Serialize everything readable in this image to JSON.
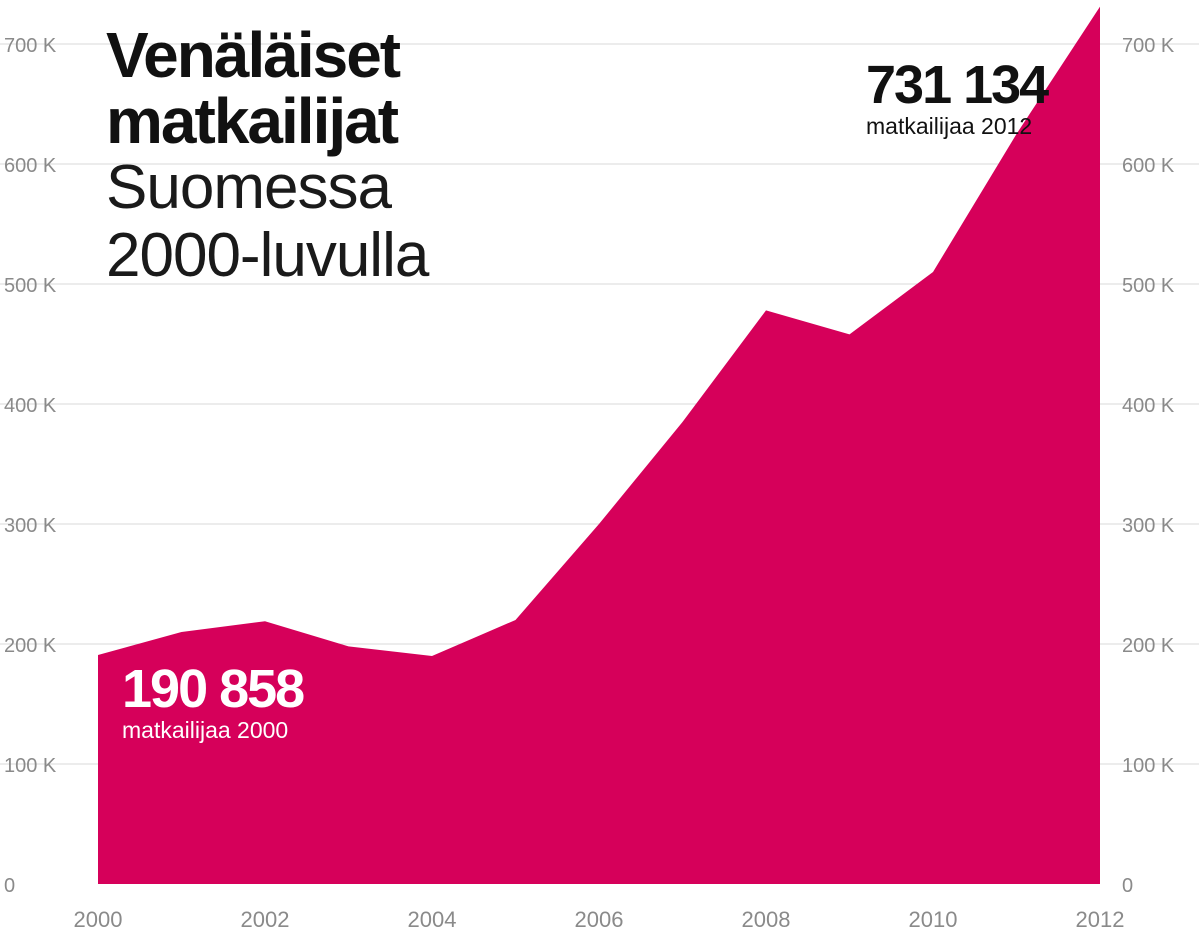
{
  "title": {
    "line1": "Venäläiset",
    "line2": "matkailijat",
    "line3": "Suomessa",
    "line4": "2000-luvulla"
  },
  "callouts": {
    "start": {
      "value": "190 858",
      "label": "matkailijaa 2000"
    },
    "end": {
      "value": "731 134",
      "label": "matkailijaa 2012"
    }
  },
  "colors": {
    "area": "#d6005a",
    "grid": "#d8d8d8",
    "tick": "#8a8a8a"
  },
  "chart_data": {
    "type": "area",
    "x": [
      2000,
      2001,
      2002,
      2003,
      2004,
      2005,
      2006,
      2007,
      2008,
      2009,
      2010,
      2011,
      2012
    ],
    "values": [
      190858,
      210000,
      219000,
      198000,
      190000,
      220000,
      300000,
      385000,
      478000,
      458000,
      510000,
      625000,
      731134
    ],
    "xticks": [
      "2000",
      "2002",
      "2004",
      "2006",
      "2008",
      "2010",
      "2012"
    ],
    "yticks": [
      0,
      100000,
      200000,
      300000,
      400000,
      500000,
      600000,
      700000
    ],
    "ytick_labels": [
      "0",
      "100 K",
      "200 K",
      "300 K",
      "400 K",
      "500 K",
      "600 K",
      "700 K"
    ],
    "xlim": [
      2000,
      2012
    ],
    "ylim": [
      0,
      735000
    ],
    "grid": true
  }
}
